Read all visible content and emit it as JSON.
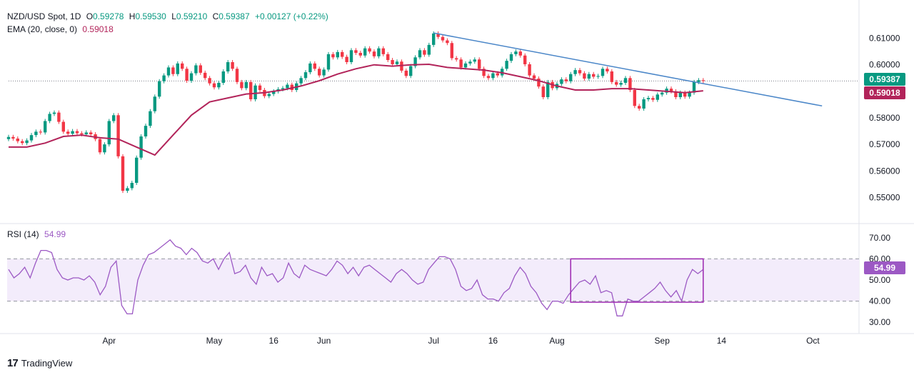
{
  "header": {
    "symbol": "NZD/USD Spot, 1D",
    "open_label": "O",
    "open": "0.59278",
    "high_label": "H",
    "high": "0.59530",
    "low_label": "L",
    "low": "0.59210",
    "close_label": "C",
    "close": "0.59387",
    "change": "+0.00127 (+0.22%)",
    "ema_label": "EMA (20, close, 0)",
    "ema_value": "0.59018",
    "rsi_label": "RSI (14)",
    "rsi_value": "54.99"
  },
  "badges": {
    "price": "0.59387",
    "ema": "0.59018",
    "rsi": "54.99"
  },
  "branding": {
    "text": "TradingView"
  },
  "colors": {
    "up": "#089981",
    "down": "#f23645",
    "ema": "#b2245a",
    "trend": "#4a86c8",
    "rsi": "#9c59c4",
    "rsi_band": "#f3ecfb",
    "highlight_box": "#9c27b0"
  },
  "chart_data": [
    {
      "type": "candlestick",
      "title": "NZD/USD Spot, 1D",
      "ylim": [
        0.545,
        0.615
      ],
      "y_ticks": [
        "0.61000",
        "0.60000",
        "0.59000",
        "0.58000",
        "0.57000",
        "0.56000",
        "0.55000"
      ],
      "x_ticks": [
        "Apr",
        "May",
        "16",
        "Jun",
        "Jul",
        "16",
        "Aug",
        "Sep",
        "14",
        "Oct"
      ],
      "closes": [
        0.5728,
        0.5722,
        0.5712,
        0.5705,
        0.5715,
        0.5735,
        0.5748,
        0.5745,
        0.5788,
        0.5815,
        0.582,
        0.5785,
        0.5748,
        0.574,
        0.575,
        0.5742,
        0.5738,
        0.5745,
        0.5738,
        0.572,
        0.567,
        0.57,
        0.5788,
        0.581,
        0.5655,
        0.5525,
        0.5535,
        0.5555,
        0.565,
        0.573,
        0.577,
        0.5825,
        0.588,
        0.5938,
        0.596,
        0.599,
        0.5965,
        0.6005,
        0.5985,
        0.594,
        0.5968,
        0.5998,
        0.597,
        0.595,
        0.593,
        0.5915,
        0.5932,
        0.5975,
        0.601,
        0.5985,
        0.5935,
        0.5912,
        0.5935,
        0.587,
        0.5922,
        0.5905,
        0.5882,
        0.589,
        0.59,
        0.5908,
        0.5912,
        0.5925,
        0.5905,
        0.593,
        0.595,
        0.5972,
        0.6005,
        0.5985,
        0.596,
        0.5982,
        0.604,
        0.6028,
        0.6048,
        0.603,
        0.601,
        0.6055,
        0.6045,
        0.6035,
        0.6062,
        0.605,
        0.6032,
        0.6062,
        0.604,
        0.6018,
        0.6002,
        0.6012,
        0.5978,
        0.5958,
        0.5995,
        0.6028,
        0.6055,
        0.6038,
        0.6075,
        0.6118,
        0.6105,
        0.6092,
        0.6082,
        0.6025,
        0.602,
        0.599,
        0.6005,
        0.6012,
        0.602,
        0.5985,
        0.5958,
        0.595,
        0.5968,
        0.596,
        0.5985,
        0.6015,
        0.604,
        0.605,
        0.6035,
        0.6002,
        0.596,
        0.5948,
        0.5918,
        0.5878,
        0.5935,
        0.5912,
        0.5928,
        0.5945,
        0.5938,
        0.5965,
        0.598,
        0.5968,
        0.5948,
        0.5965,
        0.5955,
        0.5958,
        0.5985,
        0.5975,
        0.5935,
        0.5925,
        0.5932,
        0.595,
        0.5905,
        0.5845,
        0.5835,
        0.587,
        0.5875,
        0.5868,
        0.5888,
        0.5895,
        0.591,
        0.59,
        0.5878,
        0.5895,
        0.588,
        0.5895,
        0.5935,
        0.5942,
        0.5939
      ]
    },
    {
      "type": "line",
      "title": "EMA (20, close, 0)",
      "last_value": 0.59018,
      "points": [
        0.569,
        0.569,
        0.5705,
        0.573,
        0.5735,
        0.5725,
        0.572,
        0.569,
        0.566,
        0.5735,
        0.581,
        0.586,
        0.5875,
        0.589,
        0.5895,
        0.5905,
        0.592,
        0.594,
        0.5965,
        0.5985,
        0.6,
        0.5995,
        0.6,
        0.6002,
        0.599,
        0.5985,
        0.598,
        0.597,
        0.5955,
        0.594,
        0.592,
        0.5905,
        0.5905,
        0.591,
        0.591,
        0.5905,
        0.59,
        0.5895,
        0.5902
      ],
      "note": "EMA sampled at evenly spaced candles from start to end"
    },
    {
      "type": "trendline",
      "title": "Resistance trendline",
      "from_price": 0.612,
      "to_price": 0.5845
    },
    {
      "type": "line",
      "title": "RSI (14)",
      "last_value": 54.99,
      "ylim": [
        25,
        75
      ],
      "y_ticks": [
        "70.00",
        "60.00",
        "50.00",
        "40.00",
        "30.00"
      ],
      "band": [
        40,
        60
      ],
      "values": [
        55,
        51,
        53,
        56,
        51,
        58,
        64,
        64,
        63,
        55,
        51,
        50,
        51,
        51,
        50,
        52,
        49,
        43,
        47,
        56,
        59,
        38,
        34,
        34,
        50,
        57,
        62,
        63,
        65,
        67,
        69,
        66,
        65,
        62,
        65,
        63,
        59,
        58,
        60,
        55,
        60,
        63,
        53,
        54,
        57,
        51,
        48,
        56,
        52,
        53,
        49,
        51,
        58,
        53,
        51,
        57,
        55,
        54,
        53,
        52,
        55,
        59,
        57,
        53,
        56,
        52,
        56,
        57,
        55,
        53,
        51,
        49,
        53,
        55,
        53,
        50,
        48,
        49,
        55,
        58,
        61,
        61,
        60,
        55,
        47,
        45,
        46,
        50,
        43,
        41,
        41,
        40,
        44,
        46,
        52,
        56,
        53,
        47,
        44,
        39,
        36,
        40,
        40,
        39,
        43,
        46,
        49,
        50,
        48,
        52,
        44,
        45,
        44,
        33,
        33,
        41,
        40,
        40,
        42,
        44,
        46,
        49,
        45,
        42,
        45,
        40,
        50,
        55,
        53,
        55
      ],
      "highlight": {
        "x_from_candle": 123,
        "x_to_candle": 152,
        "y_from": 39.5,
        "y_to": 60
      }
    }
  ]
}
